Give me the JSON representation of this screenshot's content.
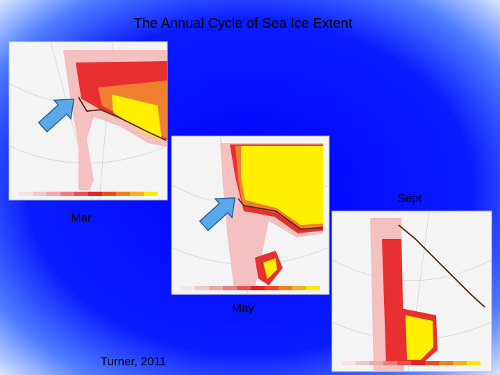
{
  "title": "The Annual Cycle of Sea Ice Extent",
  "panels": [
    {
      "label": "Mar"
    },
    {
      "label": "May"
    },
    {
      "label": "Sept"
    }
  ],
  "credit": "Turner, 2011"
}
